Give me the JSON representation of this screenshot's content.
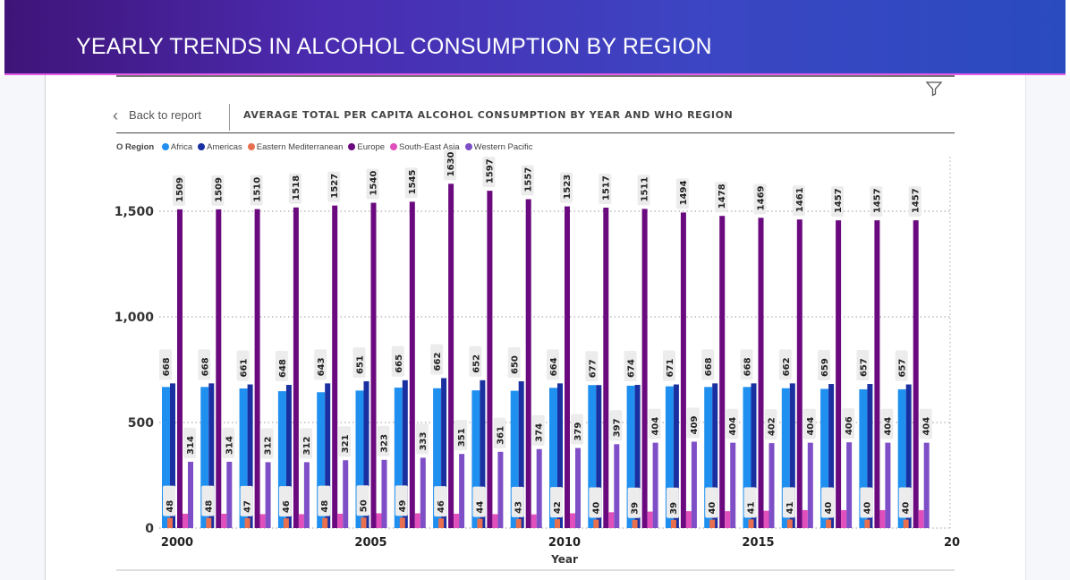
{
  "banner": {
    "title": "YEARLY TRENDS IN ALCOHOL CONSUMPTION BY REGION"
  },
  "nav": {
    "back_label": "Back to report",
    "back_icon": "chevron-left-icon",
    "filter_icon": "filter-icon"
  },
  "visual": {
    "title": "AVERAGE TOTAL PER CAPITA ALCOHOL CONSUMPTION BY YEAR AND WHO REGION"
  },
  "legend": {
    "title": "O Region",
    "items": [
      {
        "name": "Africa",
        "color": "#1f8ff0"
      },
      {
        "name": "Americas",
        "color": "#1a2fa0"
      },
      {
        "name": "Eastern Mediterranean",
        "color": "#e8704f"
      },
      {
        "name": "Europe",
        "color": "#6a0a7e"
      },
      {
        "name": "South-East Asia",
        "color": "#e04fbc"
      },
      {
        "name": "Western Pacific",
        "color": "#7e4fc6"
      }
    ]
  },
  "chart_data": {
    "type": "bar",
    "title": "AVERAGE TOTAL PER CAPITA ALCOHOL CONSUMPTION BY YEAR AND WHO REGION",
    "xlabel": "Year",
    "ylabel": "",
    "ylim": [
      0,
      1700
    ],
    "yticks": [
      0,
      500,
      1000,
      1500
    ],
    "ytick_labels": [
      "0",
      "500",
      "1,000",
      "1,500"
    ],
    "xtick_labels": [
      "2000",
      "2005",
      "2010",
      "2015",
      "20"
    ],
    "grid": true,
    "legend_position": "top-left",
    "categories": [
      2000,
      2001,
      2002,
      2003,
      2004,
      2005,
      2006,
      2007,
      2008,
      2009,
      2010,
      2011,
      2012,
      2013,
      2014,
      2015,
      2016,
      2017,
      2018,
      2019
    ],
    "series": [
      {
        "name": "Africa",
        "values": [
          668,
          668,
          661,
          648,
          643,
          651,
          665,
          662,
          652,
          650,
          664,
          677,
          674,
          671,
          668,
          668,
          662,
          659,
          657,
          657
        ],
        "labeled": true
      },
      {
        "name": "Americas",
        "values": [
          685,
          685,
          680,
          678,
          685,
          695,
          700,
          710,
          700,
          695,
          685,
          677,
          678,
          680,
          685,
          685,
          685,
          682,
          682,
          680
        ],
        "labeled": false
      },
      {
        "name": "Eastern Mediterranean",
        "values": [
          48,
          48,
          47,
          46,
          48,
          50,
          49,
          46,
          44,
          43,
          42,
          40,
          39,
          39,
          40,
          41,
          41,
          40,
          40,
          40
        ],
        "labeled": true
      },
      {
        "name": "Europe",
        "values": [
          1509,
          1509,
          1510,
          1518,
          1527,
          1540,
          1545,
          1630,
          1597,
          1557,
          1523,
          1517,
          1511,
          1494,
          1478,
          1469,
          1461,
          1457,
          1457,
          1457
        ],
        "labeled": true
      },
      {
        "name": "South-East Asia",
        "values": [
          68,
          68,
          66,
          66,
          68,
          70,
          70,
          68,
          66,
          65,
          70,
          75,
          78,
          80,
          80,
          82,
          85,
          85,
          85,
          85
        ],
        "labeled": false
      },
      {
        "name": "Western Pacific",
        "values": [
          314,
          314,
          312,
          312,
          321,
          323,
          333,
          351,
          361,
          374,
          379,
          397,
          404,
          409,
          404,
          402,
          404,
          406,
          404,
          404
        ],
        "labeled": true
      }
    ]
  }
}
